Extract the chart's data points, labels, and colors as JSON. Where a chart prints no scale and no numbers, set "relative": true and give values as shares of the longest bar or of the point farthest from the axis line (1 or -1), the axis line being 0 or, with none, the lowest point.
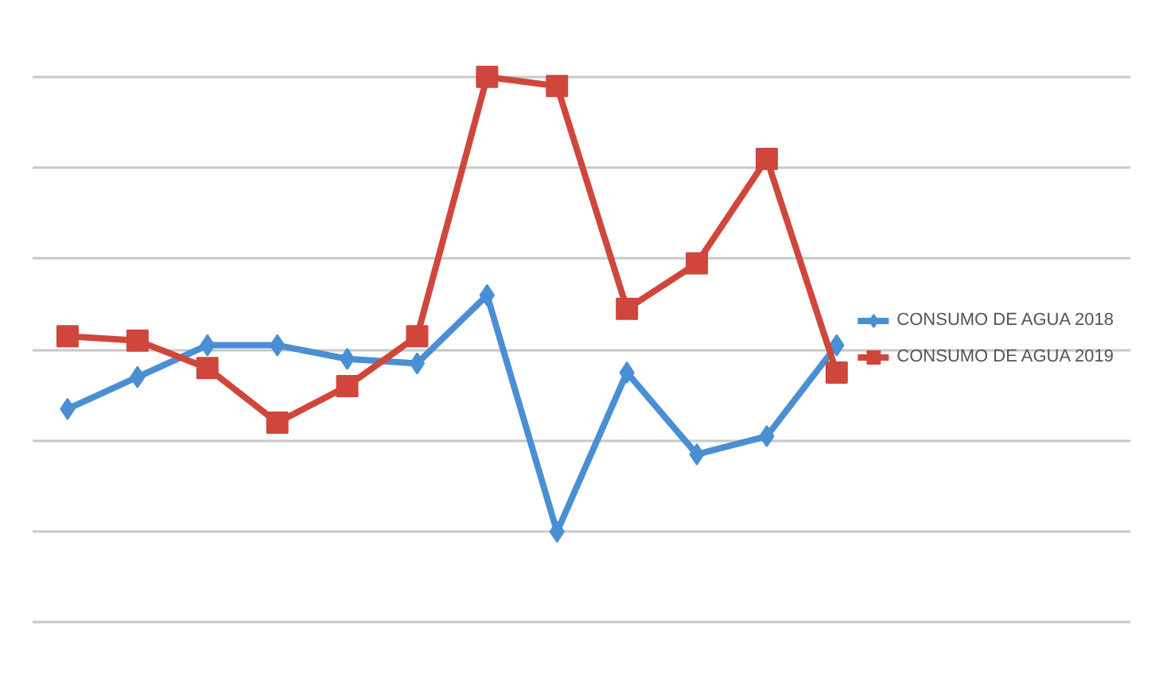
{
  "chart_data": {
    "type": "line",
    "relative": true,
    "grid": "y",
    "legend": "right",
    "line_style": "solid",
    "categories": [
      null,
      null,
      null,
      null,
      null,
      null,
      null,
      null,
      null,
      null,
      null,
      null
    ],
    "series": [
      {
        "name": "CONSUMO DE AGUA 2018",
        "color": "#4a8fd4",
        "marker": "diamond",
        "values": [
          0.27,
          0.34,
          0.41,
          0.41,
          0.38,
          0.37,
          0.52,
          0,
          0.35,
          0.17,
          0.21,
          0.41
        ]
      },
      {
        "name": "CONSUMO DE AGUA 2019",
        "color": "#d0463c",
        "marker": "square",
        "values": [
          0.43,
          0.42,
          0.36,
          0.24,
          0.32,
          0.43,
          1,
          0.98,
          0.49,
          0.59,
          0.82,
          0.35
        ]
      }
    ]
  }
}
